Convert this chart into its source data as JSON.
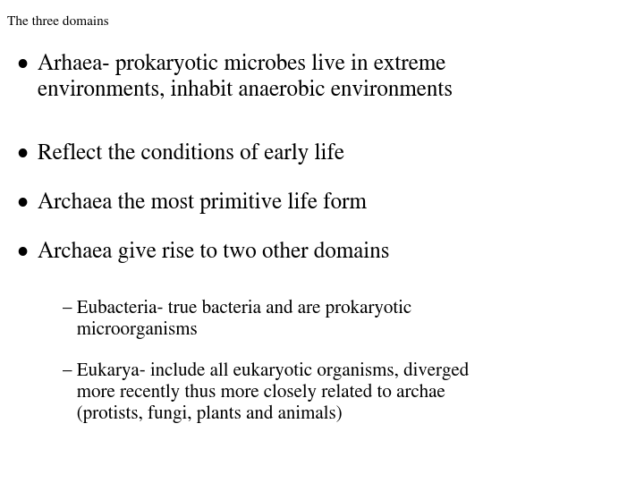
{
  "title": "The three domains",
  "background_color": "#ffffff",
  "text_color": "#000000",
  "title_fontsize": 11,
  "body_fontsize": 18,
  "sub_fontsize": 15,
  "bullet_items": [
    "Arhaea- prokaryotic microbes live in extreme\nenvironments, inhabit anaerobic environments",
    "Reflect the conditions of early life",
    "Archaea the most primitive life form",
    "Archaea give rise to two other domains"
  ],
  "sub_item_1_line1": "– Eubacteria- true bacteria and are prokaryotic",
  "sub_item_1_line2": "   microorganisms",
  "sub_item_2_line1": "– Eukarya- include all eukaryotic organisms, diverged",
  "sub_item_2_line2": "   more recently thus more closely related to archae",
  "sub_item_2_line3": "   (protists, fungi, plants and animals)",
  "font_family": "STIXGeneral"
}
